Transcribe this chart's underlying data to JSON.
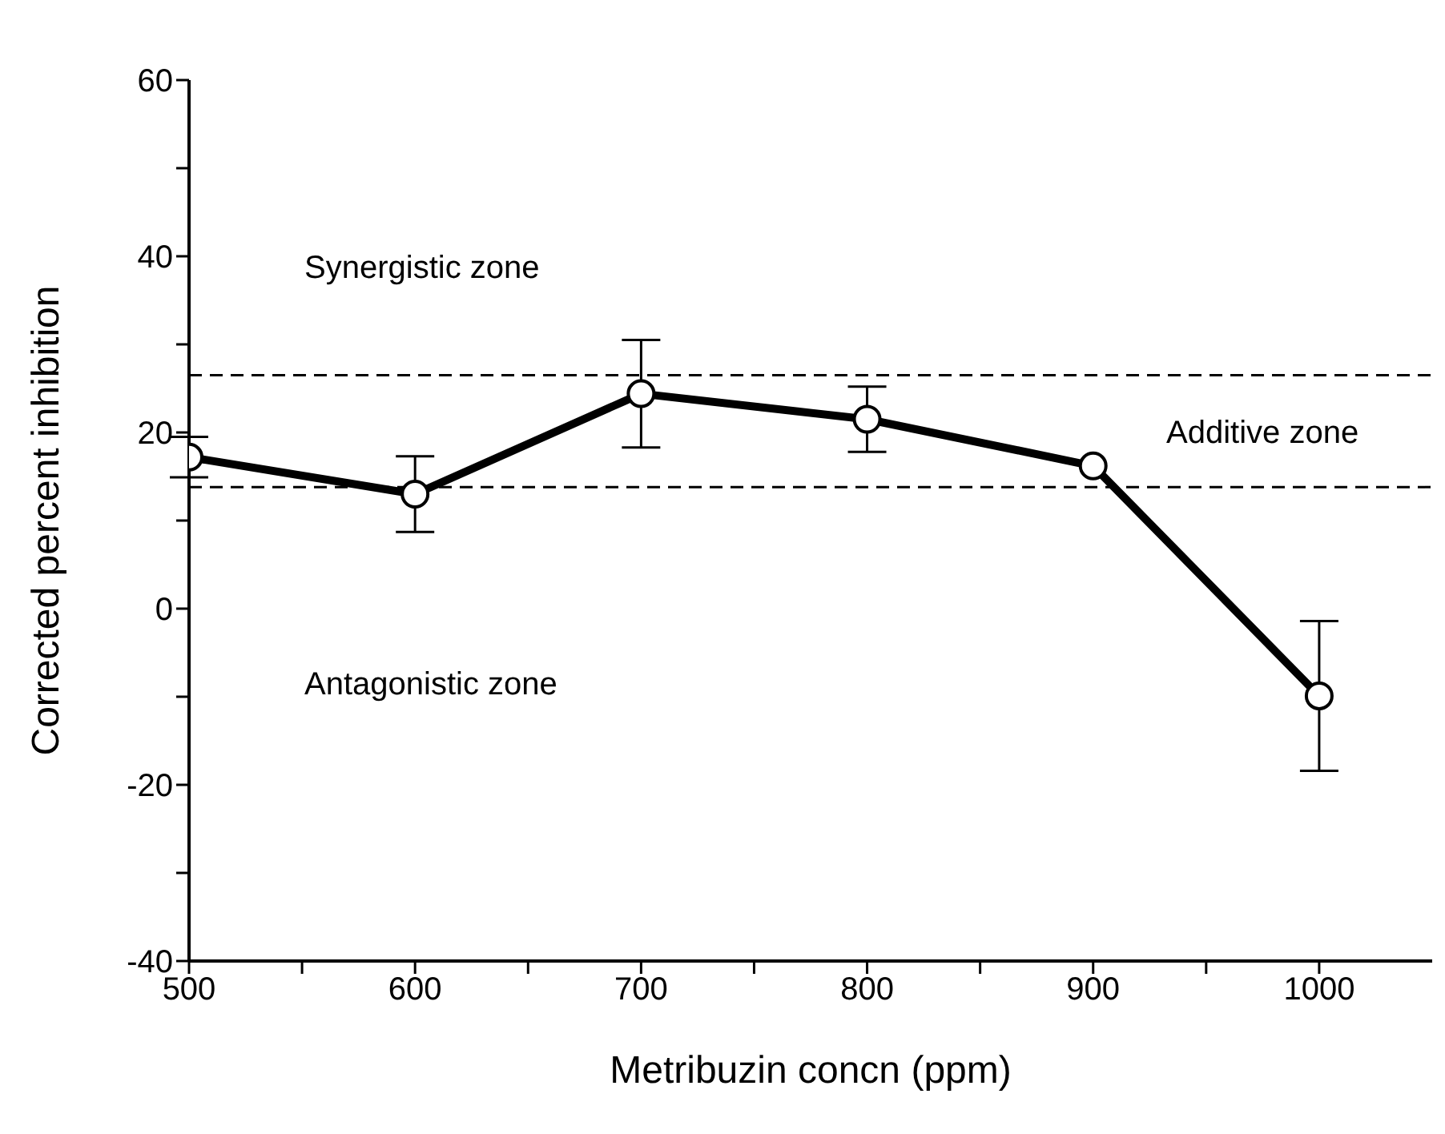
{
  "chart_data": {
    "type": "line",
    "xlabel": "Metribuzin concn (ppm)",
    "ylabel": "Corrected percent inhibition",
    "x": [
      500,
      600,
      700,
      800,
      900,
      1000
    ],
    "series": [
      {
        "color": "#000000",
        "values": [
          17.2,
          13.0,
          24.4,
          21.5,
          16.2,
          -9.9
        ],
        "errors": [
          2.3,
          4.3,
          6.1,
          3.7,
          null,
          8.5
        ]
      }
    ],
    "xlim": [
      500,
      1050
    ],
    "xticks": [
      500,
      {
        "value": 550,
        "label": null
      },
      600,
      {
        "value": 650,
        "label": null
      },
      700,
      {
        "value": 750,
        "label": null
      },
      800,
      {
        "value": 850,
        "label": null
      },
      900,
      {
        "value": 950,
        "label": null
      },
      1000
    ],
    "ylim": [
      -40,
      60
    ],
    "yticks": [
      -40,
      {
        "value": -30,
        "label": null
      },
      -20,
      {
        "value": -10,
        "label": null
      },
      0,
      {
        "value": 10,
        "label": null
      },
      20,
      {
        "value": 30,
        "label": null
      },
      40,
      {
        "value": 50,
        "label": null
      },
      60
    ],
    "ref_lines": [
      {
        "axis": "y",
        "value": 26.5,
        "line_style": "dashed",
        "color": "#000000"
      },
      {
        "axis": "y",
        "value": 13.8,
        "line_style": "dashed",
        "color": "#000000"
      }
    ],
    "annotations": [
      "Synergistic zone",
      "Additive zone",
      "Antagonistic zone"
    ],
    "marker": "circle",
    "line_style": "solid",
    "grid": false,
    "legend": false
  }
}
